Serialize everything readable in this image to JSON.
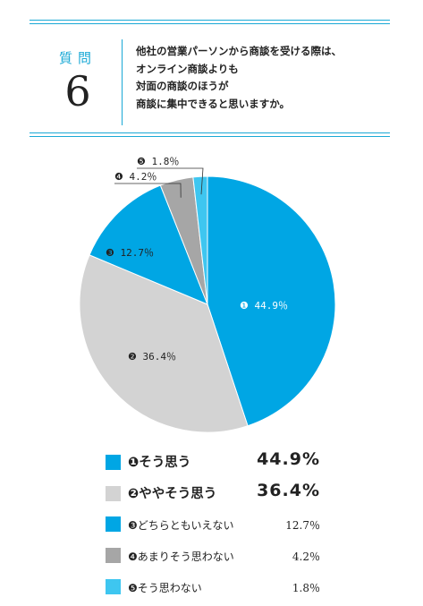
{
  "question": {
    "label": "質問",
    "number": "6",
    "lines": [
      "他社の営業パーソンから商談を受ける際は、",
      "オンライン商談よりも",
      "対面の商談のほうが",
      "商談に集中できると思いますか。"
    ]
  },
  "chart_data": {
    "type": "pie",
    "title": "",
    "slices": [
      {
        "marker": "❶",
        "label": "そう思う",
        "value": 44.9,
        "display": "44.9%",
        "pie_label": "44.9％",
        "color": "#00a6e4"
      },
      {
        "marker": "❷",
        "label": "ややそう思う",
        "value": 36.4,
        "display": "36.4%",
        "pie_label": "36.4％",
        "color": "#d3d3d3"
      },
      {
        "marker": "❸",
        "label": "どちらともいえない",
        "value": 12.7,
        "display": "12.7％",
        "pie_label": "12.7％",
        "color": "#00a6e4"
      },
      {
        "marker": "❹",
        "label": "あまりそう思わない",
        "value": 4.2,
        "display": "4.2％",
        "pie_label": "4.2％",
        "color": "#a6a6a6"
      },
      {
        "marker": "❺",
        "label": "そう思わない",
        "value": 1.8,
        "display": "1.8％",
        "pie_label": "1.8％",
        "color": "#3ec6f0"
      }
    ],
    "start": "12 o'clock",
    "direction": "clockwise",
    "legend_position": "bottom"
  }
}
